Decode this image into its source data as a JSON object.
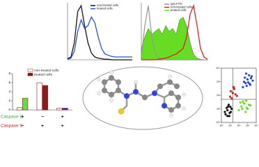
{
  "chart_data": [
    {
      "type": "line",
      "x": [
        0,
        1,
        2,
        3,
        4,
        5,
        6,
        7,
        8,
        9,
        10,
        11,
        12,
        13,
        14,
        15,
        16,
        17,
        18,
        19
      ],
      "xlim": [
        0,
        19
      ],
      "ylim": [
        0,
        100
      ],
      "series": [
        {
          "name": "non-treated cells",
          "color": "#111111",
          "values": [
            2,
            5,
            30,
            85,
            95,
            60,
            30,
            12,
            5,
            3,
            2,
            1,
            1,
            0,
            0,
            0,
            0,
            0,
            0,
            0
          ]
        },
        {
          "name": "treated cells",
          "color": "#2a50d8",
          "values": [
            1,
            3,
            15,
            50,
            70,
            55,
            60,
            75,
            65,
            40,
            20,
            10,
            8,
            6,
            5,
            5,
            5,
            5,
            5,
            5
          ]
        }
      ]
    },
    {
      "type": "line",
      "x": [
        0,
        1,
        2,
        3,
        4,
        5,
        6,
        7,
        8,
        9,
        10,
        11,
        12,
        13,
        14,
        15,
        16,
        17,
        18,
        19
      ],
      "xlim": [
        0,
        19
      ],
      "ylim": [
        0,
        100
      ],
      "series": [
        {
          "name": "IgG-FITC",
          "color": "#999999",
          "values": [
            5,
            60,
            95,
            40,
            10,
            3,
            1,
            0,
            0,
            0,
            0,
            0,
            0,
            0,
            0,
            0,
            0,
            0,
            0,
            0
          ]
        },
        {
          "name": "non-treated cells",
          "color": "#e02020",
          "values": [
            0,
            0,
            0,
            0,
            0,
            1,
            2,
            3,
            5,
            8,
            10,
            15,
            20,
            40,
            80,
            95,
            60,
            20,
            5,
            1
          ]
        },
        {
          "name": "treated cells",
          "color": "#66dd22",
          "area": true,
          "values": [
            20,
            40,
            55,
            45,
            50,
            55,
            45,
            60,
            50,
            55,
            45,
            70,
            75,
            60,
            30,
            10,
            3,
            1,
            0,
            0
          ]
        }
      ]
    },
    {
      "type": "bar",
      "ylim": [
        0,
        8
      ],
      "yticks": [
        0,
        2,
        4,
        6,
        8
      ],
      "series": [
        {
          "name": "non-treated cells",
          "color": "#ffffff",
          "values": [
            0.5,
            6,
            0.4
          ]
        },
        {
          "name": "treated cells",
          "color": "#8b1a1a",
          "bar_colors": [
            "#66dd44",
            "#8b1a1a",
            "#3344cc"
          ],
          "values": [
            2.6,
            5.4,
            0.4
          ]
        }
      ],
      "condition_rows": [
        {
          "label": "Caspase 8",
          "color": "#3cb043",
          "marks": [
            "+",
            "−",
            "+"
          ]
        },
        {
          "label": "Caspase 9",
          "color": "#d02020",
          "marks": [
            "−",
            "+",
            "+"
          ]
        }
      ]
    },
    {
      "type": "scatter",
      "log": true,
      "xlim": [
        1,
        10000
      ],
      "ylim": [
        1,
        10000
      ],
      "xticks": [
        {
          "value": 1,
          "label": "10⁰"
        },
        {
          "value": 10,
          "label": "10¹"
        },
        {
          "value": 100,
          "label": "10²"
        },
        {
          "value": 1000,
          "label": "10³"
        },
        {
          "value": 10000,
          "label": "10⁴"
        }
      ],
      "yticks": [
        {
          "value": 1,
          "label": "10⁰"
        },
        {
          "value": 10,
          "label": "10¹"
        },
        {
          "value": 100,
          "label": "10²"
        },
        {
          "value": 1000,
          "label": "10³"
        },
        {
          "value": 10000,
          "label": "10⁴"
        }
      ],
      "gates": [
        20,
        50
      ],
      "series": [
        {
          "color": "#111111",
          "x": [
            3,
            5,
            8,
            4,
            12,
            6,
            15,
            9,
            2.5,
            7,
            11,
            5
          ],
          "y": [
            4,
            8,
            3,
            12,
            6,
            15,
            10,
            5,
            6,
            20,
            14,
            3
          ]
        },
        {
          "color": "#66dd22",
          "x": [
            100,
            200,
            400,
            800,
            1500,
            300,
            600,
            150,
            1000,
            2000,
            250,
            700
          ],
          "y": [
            8,
            15,
            25,
            12,
            20,
            35,
            6,
            30,
            10,
            18,
            10,
            40
          ]
        },
        {
          "color": "#2244dd",
          "x": [
            300,
            600,
            1000,
            2000,
            3000,
            500,
            1500,
            800,
            4000,
            1200,
            700,
            2500,
            400,
            1800
          ],
          "y": [
            400,
            800,
            1500,
            600,
            2500,
            2000,
            3000,
            500,
            1200,
            900,
            4000,
            1800,
            1000,
            700
          ]
        },
        {
          "color": "#dd2222",
          "x": [
            10,
            20,
            30,
            15,
            40,
            25,
            60,
            12
          ],
          "y": [
            80,
            150,
            300,
            60,
            120,
            400,
            90,
            200
          ]
        }
      ]
    }
  ]
}
